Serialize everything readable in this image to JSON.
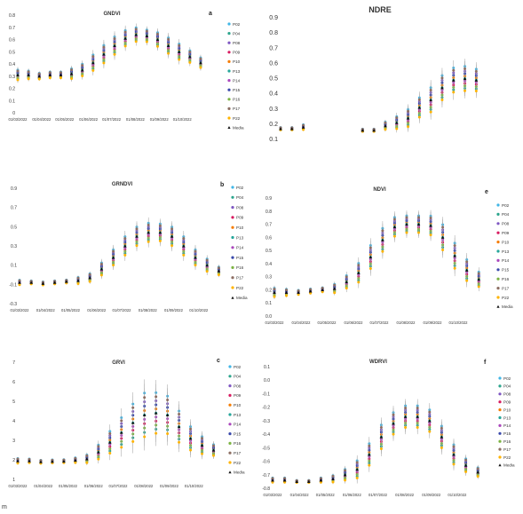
{
  "dates": [
    "01/03/2022",
    "01/04/2022",
    "01/05/2022",
    "01/06/2022",
    "01/07/2022",
    "01/08/2022",
    "01/09/2022",
    "01/10/2022"
  ],
  "legend_items": [
    "P02",
    "P04",
    "P08",
    "P09",
    "P10",
    "P13",
    "P14",
    "P15",
    "P16",
    "P17",
    "P22",
    "Media"
  ],
  "series_colors": [
    "#41b6e6",
    "#2ca58d",
    "#7e57c2",
    "#d81b60",
    "#f57c00",
    "#26a69a",
    "#ab47bc",
    "#3949ab",
    "#7cb342",
    "#8d6e63",
    "#ffb300",
    "#111111"
  ],
  "chart_data": [
    {
      "id": "a",
      "type": "scatter",
      "title": "GNDVI",
      "letter": "a",
      "ylim": [
        0,
        0.8
      ],
      "yticks": [
        "0",
        "0.1",
        "0.2",
        "0.3",
        "0.4",
        "0.5",
        "0.6",
        "0.7",
        "0.8"
      ],
      "legend": [
        "P02",
        "P04",
        "P08",
        "P09",
        "P10",
        "P13",
        "P14",
        "P15",
        "P16",
        "P17",
        "P22",
        "Media"
      ],
      "x": [
        "2022-03-01",
        "2022-03-15",
        "2022-03-29",
        "2022-04-12",
        "2022-04-26",
        "2022-05-10",
        "2022-05-24",
        "2022-06-07",
        "2022-06-21",
        "2022-07-05",
        "2022-07-19",
        "2022-08-02",
        "2022-08-16",
        "2022-08-30",
        "2022-09-13",
        "2022-09-27",
        "2022-10-11",
        "2022-10-25"
      ],
      "mean": [
        0.31,
        0.31,
        0.3,
        0.31,
        0.31,
        0.32,
        0.35,
        0.41,
        0.48,
        0.55,
        0.61,
        0.64,
        0.63,
        0.6,
        0.55,
        0.5,
        0.46,
        0.41
      ],
      "spread": [
        0.05,
        0.04,
        0.03,
        0.03,
        0.03,
        0.05,
        0.06,
        0.08,
        0.09,
        0.09,
        0.08,
        0.07,
        0.06,
        0.07,
        0.08,
        0.08,
        0.06,
        0.05
      ]
    },
    {
      "id": "nd",
      "type": "scatter",
      "title": "NDRE",
      "letter": "",
      "ylim": [
        0.1,
        0.9
      ],
      "yticks": [
        "0.1",
        "0.2",
        "0.3",
        "0.4",
        "0.5",
        "0.6",
        "0.7",
        "0.8",
        "0.9"
      ],
      "legend": [],
      "x": [
        "2022-03-01",
        "2022-03-15",
        "2022-03-29",
        "2022-06-10",
        "2022-06-24",
        "2022-07-08",
        "2022-07-22",
        "2022-08-05",
        "2022-08-19",
        "2022-09-02",
        "2022-09-16",
        "2022-09-30",
        "2022-10-14",
        "2022-10-28"
      ],
      "mean": [
        0.17,
        0.17,
        0.18,
        0.16,
        0.16,
        0.19,
        0.21,
        0.24,
        0.31,
        0.36,
        0.44,
        0.49,
        0.5,
        0.49
      ],
      "spread": [
        0.01,
        0.01,
        0.02,
        0.01,
        0.01,
        0.03,
        0.05,
        0.07,
        0.08,
        0.1,
        0.1,
        0.1,
        0.1,
        0.09
      ]
    },
    {
      "id": "b",
      "type": "scatter",
      "title": "GRNDVI",
      "letter": "b",
      "ylim": [
        -0.3,
        0.9
      ],
      "yticks": [
        "-0.3",
        "-0.1",
        "0.1",
        "0.3",
        "0.5",
        "0.7",
        "0.9"
      ],
      "legend": [
        "P02",
        "P04",
        "P08",
        "P09",
        "P10",
        "P13",
        "P14",
        "P15",
        "P16",
        "P17",
        "P22",
        "Media"
      ],
      "x": [
        "2022-03-01",
        "2022-03-15",
        "2022-03-29",
        "2022-04-12",
        "2022-04-26",
        "2022-05-10",
        "2022-05-24",
        "2022-06-07",
        "2022-06-21",
        "2022-07-05",
        "2022-07-19",
        "2022-08-02",
        "2022-08-16",
        "2022-08-30",
        "2022-09-13",
        "2022-09-27",
        "2022-10-11",
        "2022-10-25"
      ],
      "mean": [
        -0.08,
        -0.08,
        -0.09,
        -0.08,
        -0.07,
        -0.06,
        -0.03,
        0.06,
        0.18,
        0.3,
        0.4,
        0.44,
        0.44,
        0.4,
        0.3,
        0.18,
        0.1,
        0.04
      ],
      "spread": [
        0.03,
        0.02,
        0.02,
        0.02,
        0.02,
        0.04,
        0.05,
        0.08,
        0.1,
        0.12,
        0.12,
        0.12,
        0.11,
        0.12,
        0.12,
        0.1,
        0.08,
        0.05
      ]
    },
    {
      "id": "e",
      "type": "scatter",
      "title": "NDVI",
      "letter": "e",
      "ylim": [
        0,
        0.9
      ],
      "yticks": [
        "0.0",
        "0.1",
        "0.2",
        "0.3",
        "0.4",
        "0.5",
        "0.6",
        "0.7",
        "0.8",
        "0.9"
      ],
      "legend": [
        "P02",
        "P04",
        "P08",
        "P09",
        "P10",
        "P13",
        "P14",
        "P15",
        "P16",
        "P17",
        "P22",
        "Media"
      ],
      "x": [
        "2022-03-01",
        "2022-03-15",
        "2022-03-29",
        "2022-04-12",
        "2022-04-26",
        "2022-05-10",
        "2022-05-24",
        "2022-06-07",
        "2022-06-21",
        "2022-07-05",
        "2022-07-19",
        "2022-08-02",
        "2022-08-16",
        "2022-08-30",
        "2022-09-13",
        "2022-09-27",
        "2022-10-11",
        "2022-10-25"
      ],
      "mean": [
        0.18,
        0.18,
        0.18,
        0.19,
        0.2,
        0.21,
        0.26,
        0.33,
        0.45,
        0.58,
        0.68,
        0.7,
        0.7,
        0.69,
        0.6,
        0.46,
        0.35,
        0.28
      ],
      "spread": [
        0.04,
        0.03,
        0.02,
        0.02,
        0.02,
        0.04,
        0.06,
        0.09,
        0.11,
        0.11,
        0.09,
        0.08,
        0.08,
        0.09,
        0.12,
        0.12,
        0.1,
        0.07
      ]
    },
    {
      "id": "c",
      "type": "scatter",
      "title": "GRVI",
      "letter": "c",
      "ylim": [
        1,
        7
      ],
      "yticks": [
        "1",
        "2",
        "3",
        "4",
        "5",
        "6",
        "7"
      ],
      "legend": [
        "P02",
        "P04",
        "P08",
        "P09",
        "P10",
        "P13",
        "P14",
        "P15",
        "P16",
        "P17",
        "P22",
        "Media"
      ],
      "x": [
        "2022-03-01",
        "2022-03-15",
        "2022-03-29",
        "2022-04-12",
        "2022-04-26",
        "2022-05-10",
        "2022-05-24",
        "2022-06-07",
        "2022-06-21",
        "2022-07-05",
        "2022-07-19",
        "2022-08-02",
        "2022-08-16",
        "2022-08-30",
        "2022-09-13",
        "2022-09-27",
        "2022-10-11",
        "2022-10-25"
      ],
      "mean": [
        1.95,
        1.95,
        1.9,
        1.92,
        1.93,
        1.98,
        2.05,
        2.4,
        2.9,
        3.4,
        3.9,
        4.3,
        4.4,
        4.3,
        3.7,
        3.1,
        2.75,
        2.5
      ],
      "spread": [
        0.15,
        0.12,
        0.1,
        0.1,
        0.1,
        0.15,
        0.25,
        0.45,
        0.7,
        0.95,
        1.2,
        1.4,
        1.3,
        1.2,
        1.0,
        0.75,
        0.55,
        0.35
      ]
    },
    {
      "id": "f",
      "type": "scatter",
      "title": "WDRVI",
      "letter": "f",
      "ylim": [
        -0.8,
        0.1
      ],
      "yticks": [
        "-0.8",
        "-0.7",
        "-0.6",
        "-0.5",
        "-0.4",
        "-0.3",
        "-0.2",
        "-0.1",
        "0.0",
        "0.1"
      ],
      "legend": [
        "P02",
        "P04",
        "P08",
        "P09",
        "P10",
        "P13",
        "P14",
        "P15",
        "P16",
        "P17",
        "P22",
        "Media"
      ],
      "x": [
        "2022-03-01",
        "2022-03-15",
        "2022-03-29",
        "2022-04-12",
        "2022-04-26",
        "2022-05-10",
        "2022-05-24",
        "2022-06-07",
        "2022-06-21",
        "2022-07-05",
        "2022-07-19",
        "2022-08-02",
        "2022-08-16",
        "2022-08-30",
        "2022-09-13",
        "2022-09-27",
        "2022-10-11",
        "2022-10-25"
      ],
      "mean": [
        -0.74,
        -0.74,
        -0.75,
        -0.75,
        -0.74,
        -0.73,
        -0.7,
        -0.66,
        -0.55,
        -0.42,
        -0.32,
        -0.27,
        -0.27,
        -0.3,
        -0.42,
        -0.55,
        -0.63,
        -0.68
      ],
      "spread": [
        0.02,
        0.02,
        0.01,
        0.01,
        0.02,
        0.03,
        0.05,
        0.08,
        0.1,
        0.11,
        0.1,
        0.1,
        0.1,
        0.1,
        0.1,
        0.09,
        0.06,
        0.04
      ]
    }
  ],
  "footer_mark": "m"
}
